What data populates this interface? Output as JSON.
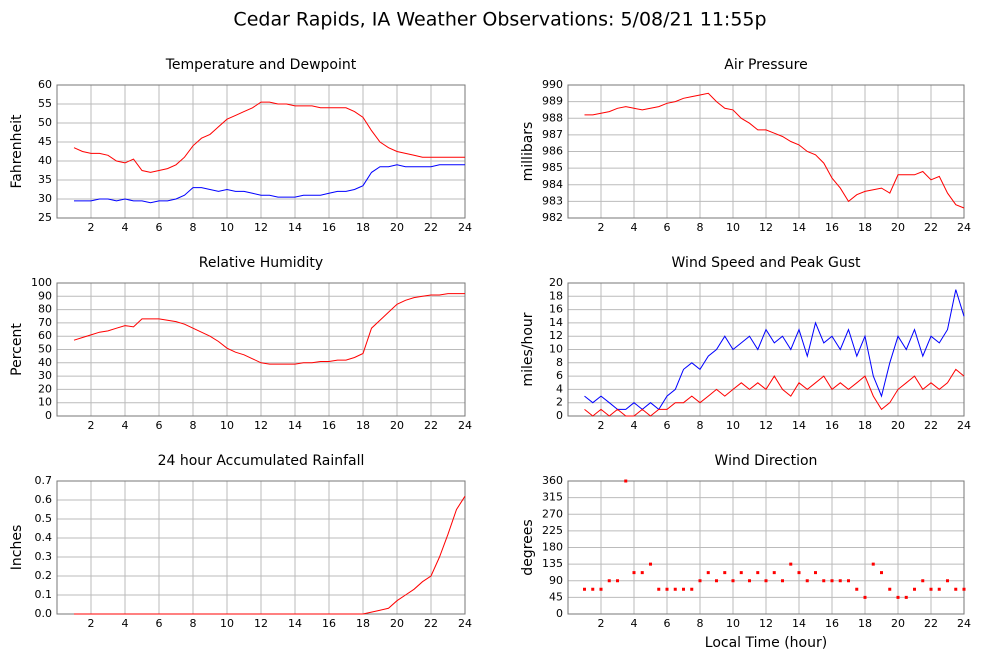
{
  "title": "Cedar Rapids, IA Weather Observations: 5/08/21 11:55p",
  "chart_data": [
    {
      "type": "line",
      "title": "Temperature and Dewpoint",
      "ylabel": "Fahrenheit",
      "grid": true,
      "x": [
        1,
        1.5,
        2,
        2.5,
        3,
        3.5,
        4,
        4.5,
        5,
        5.5,
        6,
        6.5,
        7,
        7.5,
        8,
        8.5,
        9,
        9.5,
        10,
        10.5,
        11,
        11.5,
        12,
        12.5,
        13,
        13.5,
        14,
        14.5,
        15,
        15.5,
        16,
        16.5,
        17,
        17.5,
        18,
        18.5,
        19,
        19.5,
        20,
        20.5,
        21,
        21.5,
        22,
        22.5,
        23,
        23.5,
        24
      ],
      "xlim": [
        0,
        24
      ],
      "xticks": [
        2,
        4,
        6,
        8,
        10,
        12,
        14,
        16,
        18,
        20,
        22,
        24
      ],
      "ylim": [
        25,
        60
      ],
      "yticks": [
        25,
        30,
        35,
        40,
        45,
        50,
        55,
        60
      ],
      "series": [
        {
          "color": "#ff0000",
          "values": [
            43.5,
            42.5,
            42,
            42,
            41.5,
            40,
            39.5,
            40.5,
            37.5,
            37,
            37.5,
            38,
            39,
            41,
            44,
            46,
            47,
            49,
            51,
            52,
            53,
            54,
            55.5,
            55.5,
            55,
            55,
            54.5,
            54.5,
            54.5,
            54,
            54,
            54,
            54,
            53,
            51.5,
            48,
            45,
            43.5,
            42.5,
            42,
            41.5,
            41,
            41,
            41,
            41,
            41,
            41
          ]
        },
        {
          "color": "#0000ff",
          "values": [
            29.5,
            29.5,
            29.5,
            30,
            30,
            29.5,
            30,
            29.5,
            29.5,
            29,
            29.5,
            29.5,
            30,
            31,
            33,
            33,
            32.5,
            32,
            32.5,
            32,
            32,
            31.5,
            31,
            31,
            30.5,
            30.5,
            30.5,
            31,
            31,
            31,
            31.5,
            32,
            32,
            32.5,
            33.5,
            37,
            38.5,
            38.5,
            39,
            38.5,
            38.5,
            38.5,
            38.5,
            39,
            39,
            39,
            39
          ]
        }
      ]
    },
    {
      "type": "line",
      "title": "Air Pressure",
      "ylabel": "millibars",
      "grid": true,
      "x": [
        1,
        1.5,
        2,
        2.5,
        3,
        3.5,
        4,
        4.5,
        5,
        5.5,
        6,
        6.5,
        7,
        7.5,
        8,
        8.5,
        9,
        9.5,
        10,
        10.5,
        11,
        11.5,
        12,
        12.5,
        13,
        13.5,
        14,
        14.5,
        15,
        15.5,
        16,
        16.5,
        17,
        17.5,
        18,
        18.5,
        19,
        19.5,
        20,
        20.5,
        21,
        21.5,
        22,
        22.5,
        23,
        23.5,
        24
      ],
      "xlim": [
        0,
        24
      ],
      "xticks": [
        2,
        4,
        6,
        8,
        10,
        12,
        14,
        16,
        18,
        20,
        22,
        24
      ],
      "ylim": [
        982,
        990
      ],
      "yticks": [
        982,
        983,
        984,
        985,
        986,
        987,
        988,
        989,
        990
      ],
      "series": [
        {
          "color": "#ff0000",
          "values": [
            988.2,
            988.2,
            988.3,
            988.4,
            988.6,
            988.7,
            988.6,
            988.5,
            988.6,
            988.7,
            988.9,
            989.0,
            989.2,
            989.3,
            989.4,
            989.5,
            989.0,
            988.6,
            988.5,
            988.0,
            987.7,
            987.3,
            987.3,
            987.1,
            986.9,
            986.6,
            986.4,
            986.0,
            985.8,
            985.3,
            984.4,
            983.8,
            983.0,
            983.4,
            983.6,
            983.7,
            983.8,
            983.5,
            984.6,
            984.6,
            984.6,
            984.8,
            984.3,
            984.5,
            983.5,
            982.8,
            982.6
          ]
        }
      ]
    },
    {
      "type": "line",
      "title": "Relative Humidity",
      "ylabel": "Percent",
      "grid": true,
      "x": [
        1,
        1.5,
        2,
        2.5,
        3,
        3.5,
        4,
        4.5,
        5,
        5.5,
        6,
        6.5,
        7,
        7.5,
        8,
        8.5,
        9,
        9.5,
        10,
        10.5,
        11,
        11.5,
        12,
        12.5,
        13,
        13.5,
        14,
        14.5,
        15,
        15.5,
        16,
        16.5,
        17,
        17.5,
        18,
        18.5,
        19,
        19.5,
        20,
        20.5,
        21,
        21.5,
        22,
        22.5,
        23,
        23.5,
        24
      ],
      "xlim": [
        0,
        24
      ],
      "xticks": [
        2,
        4,
        6,
        8,
        10,
        12,
        14,
        16,
        18,
        20,
        22,
        24
      ],
      "ylim": [
        0,
        100
      ],
      "yticks": [
        0,
        10,
        20,
        30,
        40,
        50,
        60,
        70,
        80,
        90,
        100
      ],
      "series": [
        {
          "color": "#ff0000",
          "values": [
            57,
            59,
            61,
            63,
            64,
            66,
            68,
            67,
            73,
            73,
            73,
            72,
            71,
            69,
            66,
            63,
            60,
            56,
            51,
            48,
            46,
            43,
            40,
            39,
            39,
            39,
            39,
            40,
            40,
            41,
            41,
            42,
            42,
            44,
            47,
            66,
            72,
            78,
            84,
            87,
            89,
            90,
            91,
            91,
            92,
            92,
            92
          ]
        }
      ]
    },
    {
      "type": "line",
      "title": "Wind Speed and Peak Gust",
      "ylabel": "miles/hour",
      "grid": true,
      "x": [
        1,
        1.5,
        2,
        2.5,
        3,
        3.5,
        4,
        4.5,
        5,
        5.5,
        6,
        6.5,
        7,
        7.5,
        8,
        8.5,
        9,
        9.5,
        10,
        10.5,
        11,
        11.5,
        12,
        12.5,
        13,
        13.5,
        14,
        14.5,
        15,
        15.5,
        16,
        16.5,
        17,
        17.5,
        18,
        18.5,
        19,
        19.5,
        20,
        20.5,
        21,
        21.5,
        22,
        22.5,
        23,
        23.5,
        24
      ],
      "xlim": [
        0,
        24
      ],
      "xticks": [
        2,
        4,
        6,
        8,
        10,
        12,
        14,
        16,
        18,
        20,
        22,
        24
      ],
      "ylim": [
        0,
        20
      ],
      "yticks": [
        0,
        2,
        4,
        6,
        8,
        10,
        12,
        14,
        16,
        18,
        20
      ],
      "series": [
        {
          "color": "#0000ff",
          "values": [
            3,
            2,
            3,
            2,
            1,
            1,
            2,
            1,
            2,
            1,
            3,
            4,
            7,
            8,
            7,
            9,
            10,
            12,
            10,
            11,
            12,
            10,
            13,
            11,
            12,
            10,
            13,
            9,
            14,
            11,
            12,
            10,
            13,
            9,
            12,
            6,
            3,
            8,
            12,
            10,
            13,
            9,
            12,
            11,
            13,
            19,
            15
          ]
        },
        {
          "color": "#ff0000",
          "values": [
            1,
            0,
            1,
            0,
            1,
            0,
            0,
            1,
            0,
            1,
            1,
            2,
            2,
            3,
            2,
            3,
            4,
            3,
            4,
            5,
            4,
            5,
            4,
            6,
            4,
            3,
            5,
            4,
            5,
            6,
            4,
            5,
            4,
            5,
            6,
            3,
            1,
            2,
            4,
            5,
            6,
            4,
            5,
            4,
            5,
            7,
            6
          ]
        }
      ]
    },
    {
      "type": "line",
      "title": "24 hour Accumulated Rainfall",
      "ylabel": "Inches",
      "grid": true,
      "x": [
        1,
        1.5,
        2,
        2.5,
        3,
        3.5,
        4,
        4.5,
        5,
        5.5,
        6,
        6.5,
        7,
        7.5,
        8,
        8.5,
        9,
        9.5,
        10,
        10.5,
        11,
        11.5,
        12,
        12.5,
        13,
        13.5,
        14,
        14.5,
        15,
        15.5,
        16,
        16.5,
        17,
        17.5,
        18,
        18.5,
        19,
        19.5,
        20,
        20.5,
        21,
        21.5,
        22,
        22.5,
        23,
        23.5,
        24
      ],
      "xlim": [
        0,
        24
      ],
      "xticks": [
        2,
        4,
        6,
        8,
        10,
        12,
        14,
        16,
        18,
        20,
        22,
        24
      ],
      "ylim": [
        0,
        0.7
      ],
      "yticks": [
        {
          "value": 0,
          "label": "0.0"
        },
        0.1,
        0.2,
        0.3,
        0.4,
        0.5,
        0.6,
        0.7
      ],
      "series": [
        {
          "color": "#ff0000",
          "values": [
            0,
            0,
            0,
            0,
            0,
            0,
            0,
            0,
            0,
            0,
            0,
            0,
            0,
            0,
            0,
            0,
            0,
            0,
            0,
            0,
            0,
            0,
            0,
            0,
            0,
            0,
            0,
            0,
            0,
            0,
            0,
            0,
            0,
            0,
            0,
            0.01,
            0.02,
            0.03,
            0.07,
            0.1,
            0.13,
            0.17,
            0.2,
            0.3,
            0.42,
            0.55,
            0.62
          ]
        }
      ]
    },
    {
      "type": "scatter",
      "title": "Wind Direction",
      "ylabel": "degrees",
      "xlabel": "Local Time (hour)",
      "grid": true,
      "x": [
        1,
        1.5,
        2,
        2.5,
        3,
        3.5,
        4,
        4.5,
        5,
        5.5,
        6,
        6.5,
        7,
        7.5,
        8,
        8.5,
        9,
        9.5,
        10,
        10.5,
        11,
        11.5,
        12,
        12.5,
        13,
        13.5,
        14,
        14.5,
        15,
        15.5,
        16,
        16.5,
        17,
        17.5,
        18,
        18.5,
        19,
        19.5,
        20,
        20.5,
        21,
        21.5,
        22,
        22.5,
        23,
        23.5,
        24
      ],
      "xlim": [
        0,
        24
      ],
      "xticks": [
        2,
        4,
        6,
        8,
        10,
        12,
        14,
        16,
        18,
        20,
        22,
        24
      ],
      "ylim": [
        0,
        360
      ],
      "yticks": [
        0,
        45,
        90,
        135,
        180,
        225,
        270,
        315,
        360
      ],
      "series": [
        {
          "color": "#ff0000",
          "values": [
            67,
            67,
            67,
            90,
            90,
            360,
            112,
            112,
            135,
            67,
            67,
            67,
            67,
            67,
            90,
            112,
            90,
            112,
            90,
            112,
            90,
            112,
            90,
            112,
            90,
            135,
            112,
            90,
            112,
            90,
            90,
            90,
            90,
            67,
            45,
            135,
            112,
            67,
            45,
            45,
            67,
            90,
            67,
            67,
            90,
            67,
            67
          ]
        }
      ]
    }
  ]
}
